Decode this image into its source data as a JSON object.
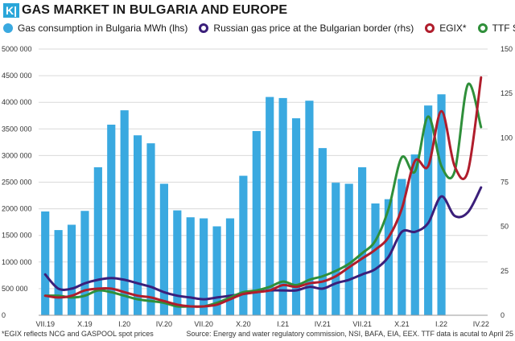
{
  "header": {
    "brand": "K|",
    "title": "GAS MARKET IN BULGARIA AND EUROPE"
  },
  "footer": {
    "note": "*EGIX reflects NCG and GASPOOL spot prices",
    "source": "Source: Energy and water regulatory commission, NSI, BAFA, EIA, EEX. TTF data is acutal to April 25"
  },
  "colors": {
    "bars": "#3aa9e0",
    "russian": "#3b1f7a",
    "egix": "#b01d2c",
    "ttf": "#2f8f3a"
  },
  "chart_data": {
    "type": "bar",
    "title": "GAS MARKET IN BULGARIA AND EUROPE",
    "legend_position": "top",
    "grid": true,
    "categories": [
      "VII.19",
      "VIII.19",
      "IX.19",
      "X.19",
      "XI.19",
      "XII.19",
      "I.20",
      "II.20",
      "III.20",
      "IV.20",
      "V.20",
      "VI.20",
      "VII.20",
      "VIII.20",
      "IX.20",
      "X.20",
      "XI.20",
      "XII.20",
      "I.21",
      "II.21",
      "III.21",
      "IV.21",
      "V.21",
      "VI.21",
      "VII.21",
      "VIII.21",
      "IX.21",
      "X.21",
      "XI.21",
      "XII.21",
      "I.22",
      "II.22",
      "III.22",
      "IV.22"
    ],
    "x_tick_labels": [
      "VII.19",
      "X.19",
      "I.20",
      "IV.20",
      "VII.20",
      "X.20",
      "I.21",
      "IV.21",
      "VII.21",
      "X.21",
      "I.22",
      "IV.22"
    ],
    "y_left": {
      "min": 0,
      "max": 5000000,
      "ticks": [
        "0",
        "500 000",
        "1000 000",
        "1500 000",
        "2000 000",
        "2500 000",
        "3000 000",
        "3500 000",
        "4000 000",
        "4500 000",
        "5000 000"
      ]
    },
    "y_right": {
      "min": 0,
      "max": 150,
      "ticks": [
        "0",
        "25",
        "50",
        "75",
        "100",
        "125",
        "150"
      ]
    },
    "series": [
      {
        "name": "Gas consumption in Bulgaria MWh (lhs)",
        "type": "bar",
        "axis": "left",
        "values": [
          1950000,
          1600000,
          1700000,
          1960000,
          2780000,
          3580000,
          3850000,
          3380000,
          3230000,
          2470000,
          1970000,
          1840000,
          1820000,
          1670000,
          1820000,
          2620000,
          3460000,
          4100000,
          4080000,
          3700000,
          4030000,
          3140000,
          2490000,
          2470000,
          2780000,
          2100000,
          2180000,
          2560000,
          3020000,
          3940000,
          4150000,
          null,
          null,
          null
        ]
      },
      {
        "name": "Russian gas price at the Bulgarian border (rhs)",
        "type": "line",
        "axis": "right",
        "values": [
          23,
          15,
          15,
          18,
          20,
          21,
          20,
          18,
          16,
          13,
          11,
          10,
          9,
          10,
          11,
          12,
          13,
          14,
          14,
          14,
          16,
          15,
          18,
          20,
          23,
          26,
          33,
          47,
          47,
          52,
          67,
          56,
          58,
          72
        ]
      },
      {
        "name": "EGIX*",
        "type": "line",
        "axis": "right",
        "values": [
          11,
          10,
          11,
          14,
          15,
          15,
          13,
          11,
          10,
          8,
          6,
          5,
          5,
          6,
          9,
          12,
          13,
          14,
          17,
          16,
          18,
          19,
          22,
          27,
          32,
          37,
          44,
          60,
          87,
          84,
          115,
          84,
          81,
          134
        ]
      },
      {
        "name": "TTF Spot",
        "type": "line",
        "axis": "right",
        "values": [
          11,
          11,
          10,
          11,
          14,
          13,
          11,
          9,
          8,
          7,
          5,
          5,
          5,
          7,
          10,
          13,
          14,
          16,
          19,
          17,
          20,
          22,
          25,
          29,
          35,
          42,
          60,
          89,
          81,
          112,
          84,
          81,
          130,
          106
        ]
      }
    ]
  }
}
